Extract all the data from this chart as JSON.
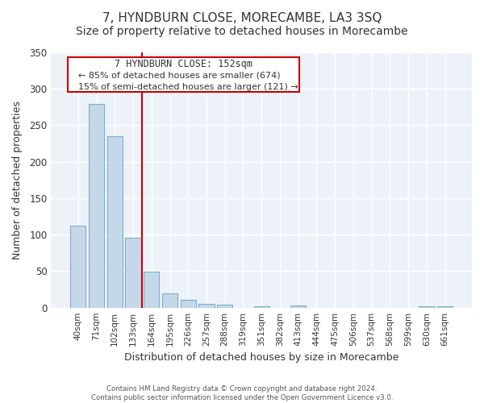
{
  "title": "7, HYNDBURN CLOSE, MORECAMBE, LA3 3SQ",
  "subtitle": "Size of property relative to detached houses in Morecambe",
  "xlabel": "Distribution of detached houses by size in Morecambe",
  "ylabel": "Number of detached properties",
  "bar_color": "#c5d8ea",
  "bar_edge_color": "#7aafc8",
  "categories": [
    "40sqm",
    "71sqm",
    "102sqm",
    "133sqm",
    "164sqm",
    "195sqm",
    "226sqm",
    "257sqm",
    "288sqm",
    "319sqm",
    "351sqm",
    "382sqm",
    "413sqm",
    "444sqm",
    "475sqm",
    "506sqm",
    "537sqm",
    "568sqm",
    "599sqm",
    "630sqm",
    "661sqm"
  ],
  "values": [
    112,
    279,
    235,
    96,
    49,
    19,
    11,
    5,
    4,
    0,
    2,
    0,
    3,
    0,
    0,
    0,
    0,
    0,
    0,
    2,
    2
  ],
  "ylim": [
    0,
    350
  ],
  "yticks": [
    0,
    50,
    100,
    150,
    200,
    250,
    300,
    350
  ],
  "annotation_title": "7 HYNDBURN CLOSE: 152sqm",
  "annotation_line1": "← 85% of detached houses are smaller (674)",
  "annotation_line2": "15% of semi-detached houses are larger (121) →",
  "vline_x": 3.5,
  "vline_color": "#cc0000",
  "footer_line1": "Contains HM Land Registry data © Crown copyright and database right 2024.",
  "footer_line2": "Contains public sector information licensed under the Open Government Licence v3.0.",
  "background_color": "#ffffff",
  "plot_bg_color": "#edf2f9",
  "grid_color": "#ffffff",
  "title_fontsize": 11,
  "subtitle_fontsize": 10,
  "tick_fontsize": 7.5,
  "ylabel_fontsize": 9,
  "xlabel_fontsize": 9
}
